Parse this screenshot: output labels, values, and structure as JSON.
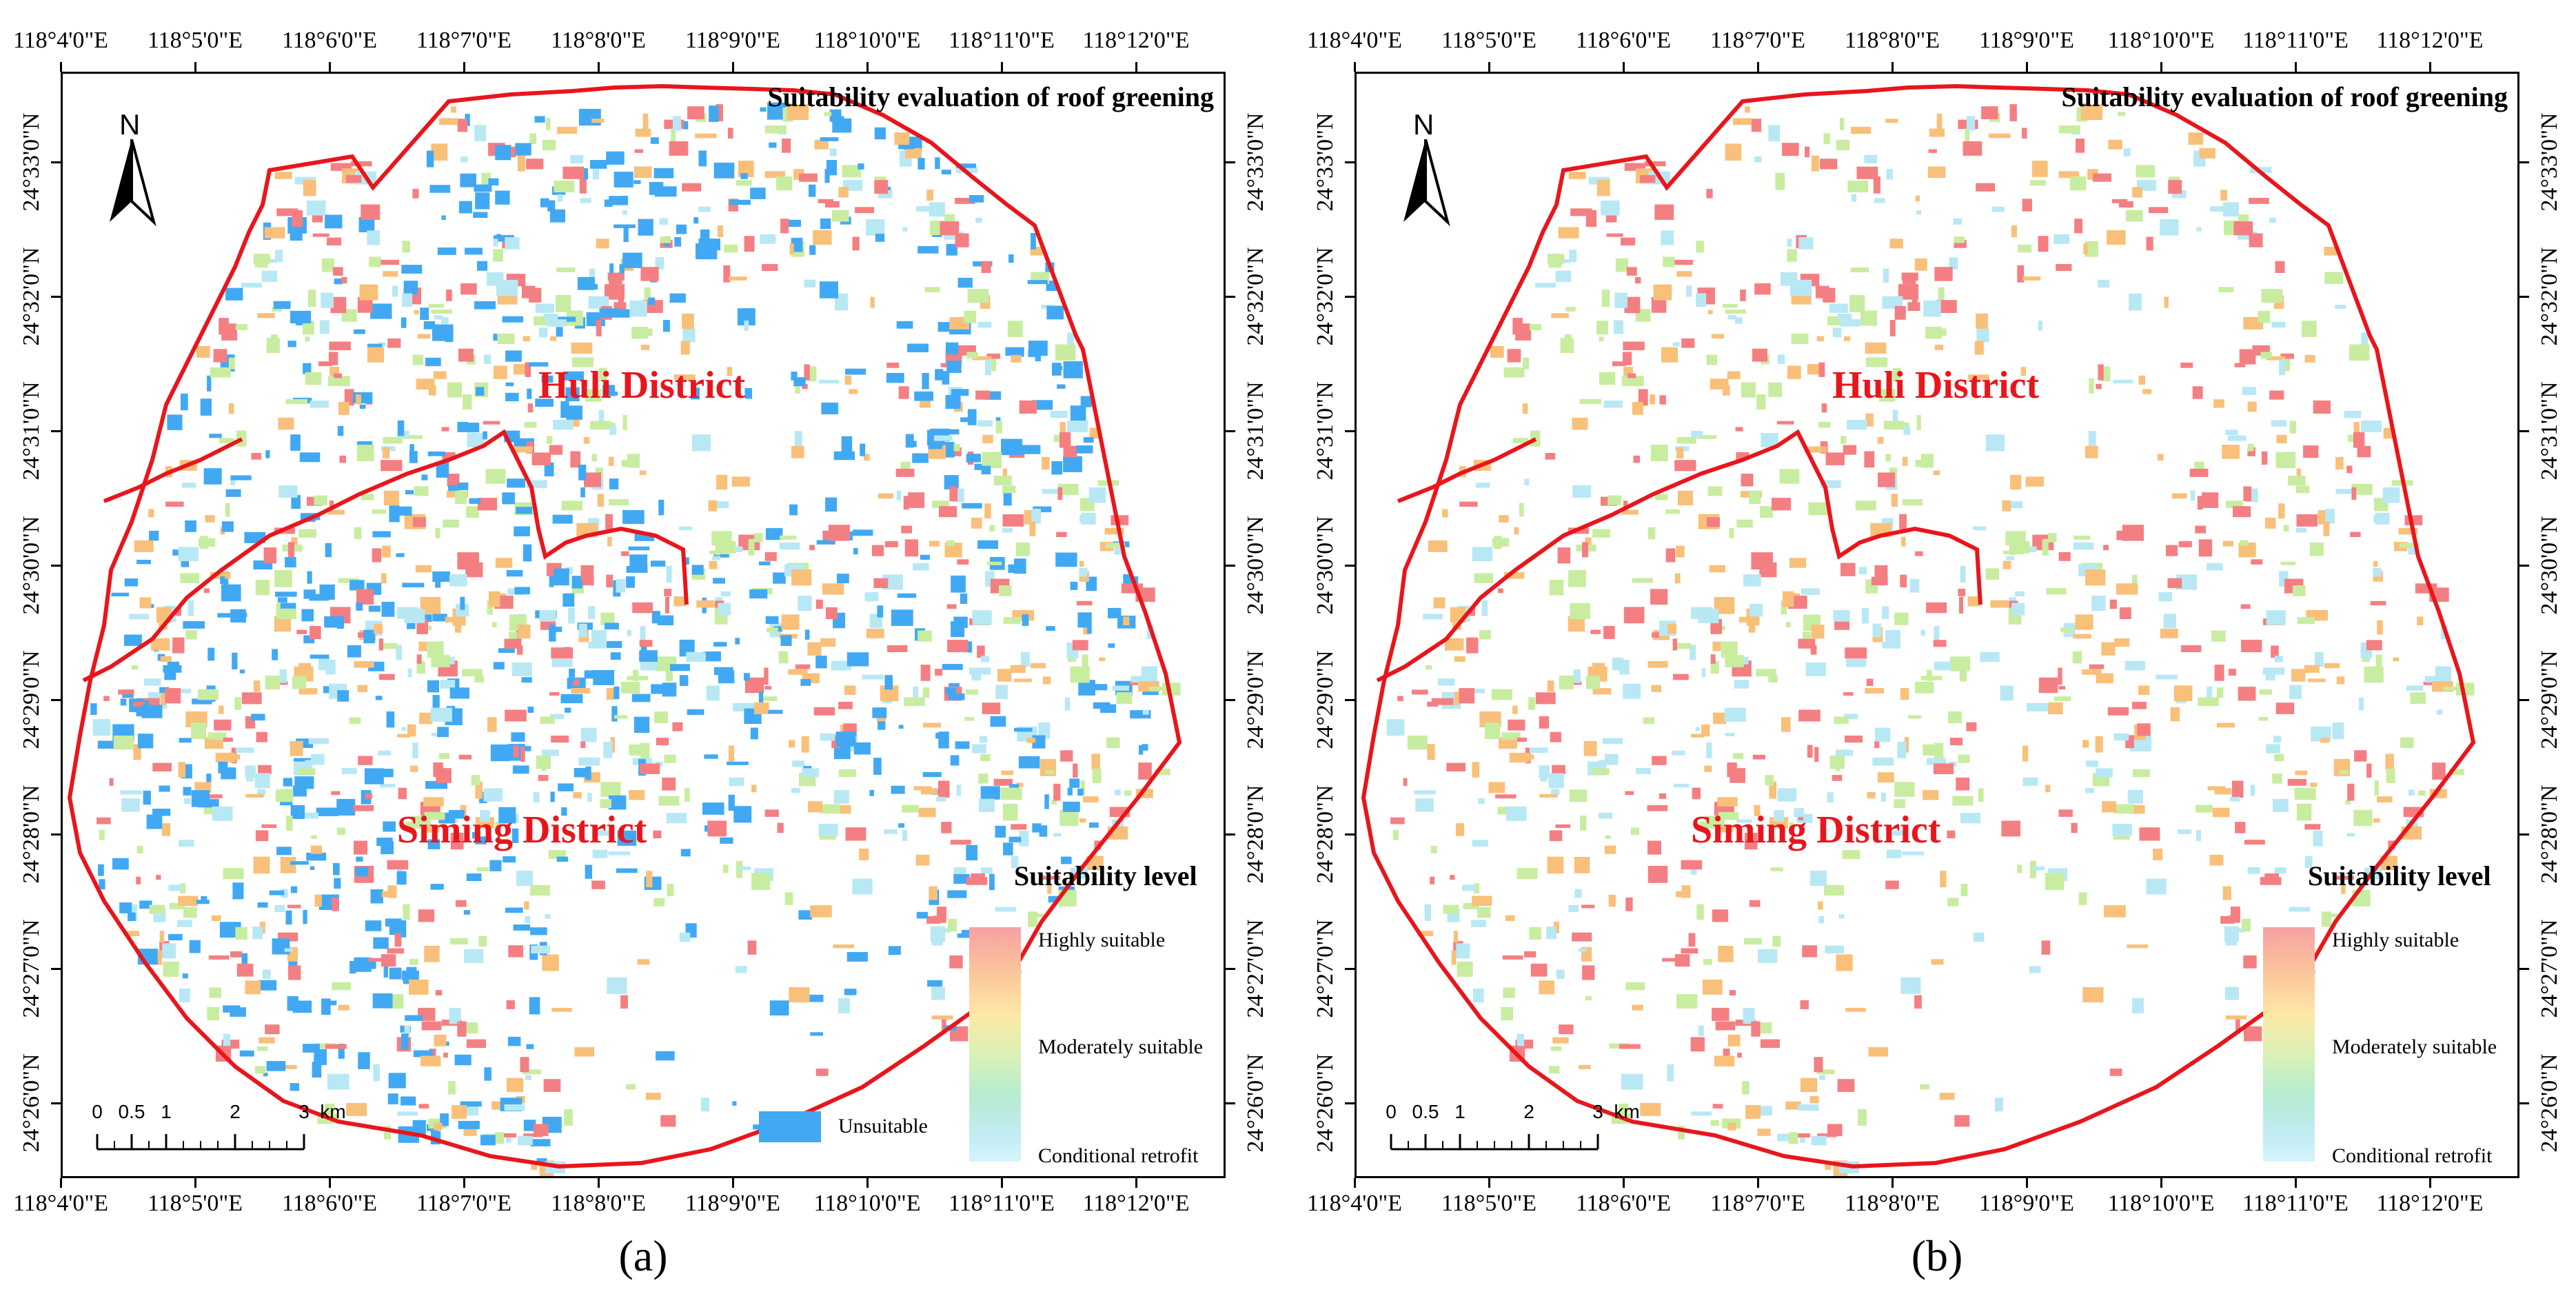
{
  "panels": [
    {
      "caption": "(a)",
      "title": "Suitability evaluation of roof greening",
      "north_label": "N",
      "districts": [
        "Huli District",
        "Siming District"
      ],
      "legend": {
        "title": "Suitability level",
        "high": "Highly suitable",
        "moderate": "Moderately suitable",
        "low": "Conditional retrofit",
        "unsuitable": "Unsuitable"
      },
      "scale": {
        "labels": [
          "0",
          "0.5",
          "1",
          "2",
          "3"
        ],
        "unit": "km"
      },
      "show_unsuitable": true
    },
    {
      "caption": "(b)",
      "title": "Suitability evaluation of roof greening",
      "north_label": "N",
      "districts": [
        "Huli District",
        "Siming District"
      ],
      "legend": {
        "title": "Suitability level",
        "high": "Highly suitable",
        "moderate": "Moderately suitable",
        "low": "Conditional retrofit",
        "unsuitable": ""
      },
      "scale": {
        "labels": [
          "0",
          "0.5",
          "1",
          "2",
          "3"
        ],
        "unit": "km"
      },
      "show_unsuitable": false
    }
  ],
  "lon_labels": [
    "118°4'0\"E",
    "118°5'0\"E",
    "118°6'0\"E",
    "118°7'0\"E",
    "118°8'0\"E",
    "118°9'0\"E",
    "118°10'0\"E",
    "118°11'0\"E",
    "118°12'0\"E"
  ],
  "lat_labels": [
    "24°33'0\"N",
    "24°32'0\"N",
    "24°31'0\"N",
    "24°30'0\"N",
    "24°29'0\"N",
    "24°28'0\"N",
    "24°27'0\"N",
    "24°26'0\"N"
  ],
  "colors": {
    "boundary": "#e8161c",
    "unsuitable": "#41a9f3",
    "highly": "#f47f82",
    "suitable": "#f9c07a",
    "moderate": "#c9eda0",
    "conditional": "#b9e8f5"
  }
}
